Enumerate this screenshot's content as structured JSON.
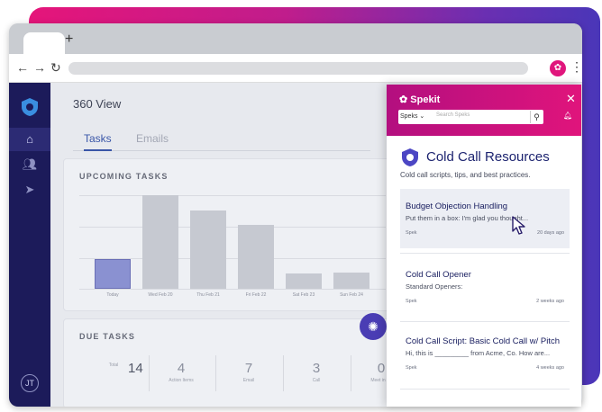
{
  "browser": {
    "new_tab": "+",
    "back": "←",
    "forward": "→",
    "reload": "↻",
    "menu": "⋮"
  },
  "app": {
    "title": "360 View",
    "tabs": [
      {
        "label": "Tasks"
      },
      {
        "label": "Emails"
      }
    ],
    "upcoming": {
      "title": "UPCOMING TASKS",
      "chart_data": {
        "type": "bar",
        "categories": [
          "Today",
          "Wed Feb 20",
          "Thu Feb 21",
          "Fri Feb 22",
          "Sat Feb 23",
          "Sun Feb 24"
        ],
        "values": [
          32,
          100,
          84,
          68,
          16,
          17
        ],
        "title": "UPCOMING TASKS",
        "ylim": [
          0,
          100
        ]
      }
    },
    "due": {
      "title": "DUE TASKS",
      "stats": [
        {
          "value": "14",
          "label": "Total"
        },
        {
          "value": "4",
          "label": "Action Items"
        },
        {
          "value": "7",
          "label": "Email"
        },
        {
          "value": "3",
          "label": "Call"
        },
        {
          "value": "0",
          "label": "Meet in pe"
        }
      ]
    },
    "avatar": "JT"
  },
  "spekit": {
    "brand": "Spekit",
    "close": "✕",
    "search": {
      "scope": "Speks",
      "placeholder": "Search Speks"
    },
    "title": "Cold Call Resources",
    "subtitle": "Cold call scripts, tips, and best practices.",
    "items": [
      {
        "title": "Budget Objection Handling",
        "body": "Put them in a box: I'm glad you thought...",
        "type": "Spek",
        "age": "20 days ago"
      },
      {
        "title": "Cold Call Opener",
        "body": "Standard Openers:",
        "type": "Spek",
        "age": "2 weeks ago"
      },
      {
        "title": "Cold Call Script: Basic Cold Call w/ Pitch",
        "body": "Hi, this is _________ from Acme, Co. How are...",
        "type": "Spek",
        "age": "4 weeks ago"
      }
    ]
  },
  "colors": {
    "accent": "#e0147c",
    "nav": "#1c1b5a",
    "bar_highlight": "#8a91d1"
  }
}
